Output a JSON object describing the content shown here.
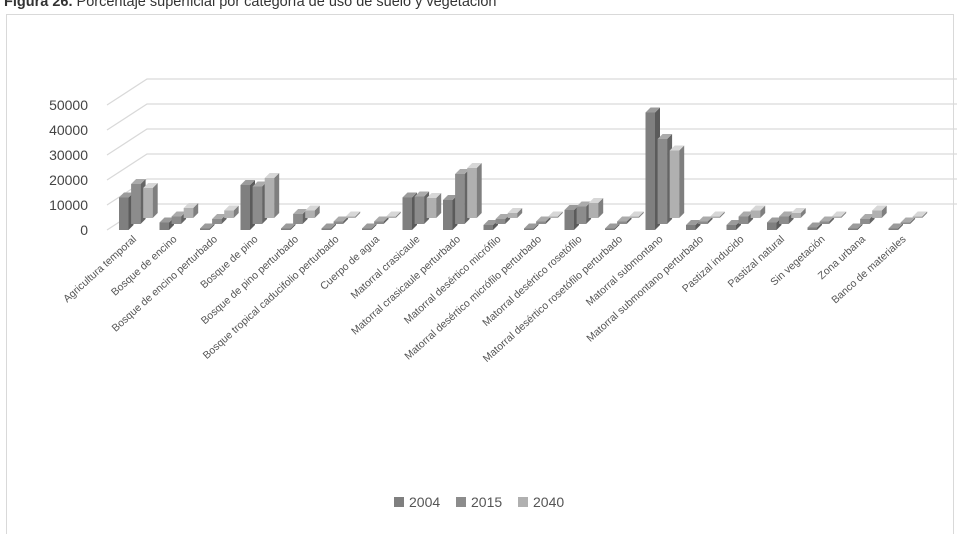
{
  "caption": {
    "prefix": "Figura 26.",
    "text": "Porcentaje superficial por categoría de uso de suelo y vegetación"
  },
  "chart_data": {
    "type": "bar",
    "title": "",
    "xlabel": "",
    "ylabel": "",
    "ylim": [
      0,
      50000
    ],
    "yticks": [
      0,
      10000,
      20000,
      30000,
      40000,
      50000
    ],
    "ytick_labels": [
      "0",
      "10000",
      "20000",
      "30000",
      "40000",
      "50000"
    ],
    "grid": true,
    "legend_position": "bottom",
    "categories": [
      "Agricultura temporal",
      "Bosque de encino",
      "Bosque de encino perturbado",
      "Bosque de pino",
      "Bosque de pino perturbado",
      "Bosque tropical caducifolio perturbado",
      "Cuerpo de agua",
      "Matorral crasicaule",
      "Matorral crasicaule perturbado",
      "Matorral desértico micrófilo",
      "Matorral desértico micrófilo perturbado",
      "Matorral desértico rosetófilo",
      "Matorral desértico rosetófilo perturbado",
      "Matorral submontano",
      "Matorral submontano perturbado",
      "Pastizal inducido",
      "Pastizal natural",
      "Sin vegetación",
      "Zona urbana",
      "Banco de materiales"
    ],
    "series": [
      {
        "name": "2004",
        "color": "#7f7f7f",
        "values": [
          13000,
          3000,
          0,
          18000,
          0,
          0,
          0,
          13000,
          12000,
          2000,
          0,
          8000,
          0,
          47000,
          2000,
          2000,
          3000,
          1000,
          0,
          0
        ]
      },
      {
        "name": "2015",
        "color": "#8c8c8c",
        "values": [
          16000,
          3000,
          2000,
          15000,
          4000,
          1000,
          1000,
          11000,
          20000,
          2000,
          1000,
          7000,
          1000,
          34000,
          1000,
          3000,
          3000,
          1000,
          2000,
          0
        ]
      },
      {
        "name": "2040",
        "color": "#b0b0b0",
        "values": [
          12000,
          4000,
          3000,
          16000,
          3000,
          0,
          0,
          8000,
          20000,
          2000,
          0,
          6000,
          0,
          27000,
          0,
          3000,
          2000,
          0,
          3000,
          0
        ]
      }
    ]
  }
}
